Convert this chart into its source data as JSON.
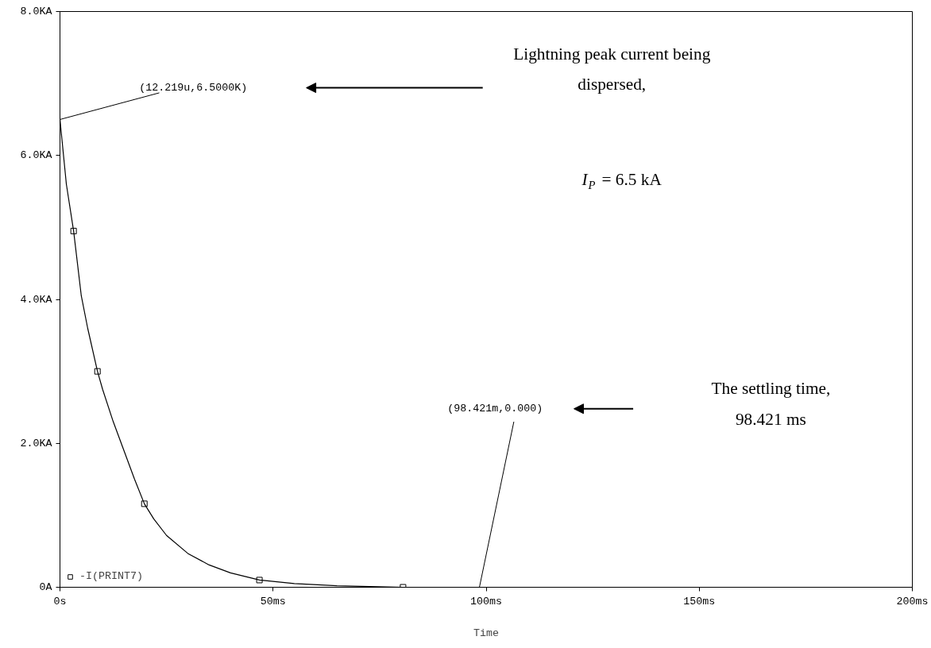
{
  "chart_data": {
    "type": "line",
    "xlabel": "Time",
    "xlim": [
      0,
      200
    ],
    "ylim": [
      0,
      8
    ],
    "xticks": [
      {
        "value": 0,
        "label": "0s"
      },
      {
        "value": 50,
        "label": "50ms"
      },
      {
        "value": 100,
        "label": "100ms"
      },
      {
        "value": 150,
        "label": "150ms"
      },
      {
        "value": 200,
        "label": "200ms"
      }
    ],
    "yticks": [
      {
        "value": 0,
        "label": "0A"
      },
      {
        "value": 2,
        "label": "2.0KA"
      },
      {
        "value": 4,
        "label": "4.0KA"
      },
      {
        "value": 6,
        "label": "6.0KA"
      },
      {
        "value": 8,
        "label": "8.0KA"
      }
    ],
    "grid": false,
    "legend": "bottom left",
    "line_style": "solid",
    "series": [
      {
        "color": "#000000",
        "marker": "none",
        "x": [
          0,
          1.5,
          3.2,
          5,
          6.5,
          8.8,
          10,
          12.5,
          15,
          17.5,
          19.8,
          22,
          25,
          30,
          35,
          40,
          46.8,
          55,
          65,
          80.5,
          95.4
        ],
        "values": [
          6.5,
          5.6,
          4.95,
          4.05,
          3.6,
          3.0,
          2.75,
          2.3,
          1.9,
          1.5,
          1.16,
          0.95,
          0.72,
          0.47,
          0.31,
          0.2,
          0.1,
          0.05,
          0.02,
          0,
          0
        ]
      },
      {
        "type": "scatter",
        "name": "-I(PRINT7)",
        "color": "#000000",
        "marker": "square",
        "x": [
          3.2,
          8.8,
          19.8,
          46.8,
          80.5
        ],
        "values": [
          4.95,
          3.0,
          1.16,
          0.1,
          0
        ]
      }
    ],
    "annotations": [
      {
        "text": "(12.219u,6.5000K)",
        "x": 0.012219,
        "y": 6.5
      },
      "(98.421m,0.000)",
      "Lightning peak current being dispersed,",
      "I$_{P}$ = 6.5 kA",
      "The settling time, 98.421 ms"
    ]
  }
}
